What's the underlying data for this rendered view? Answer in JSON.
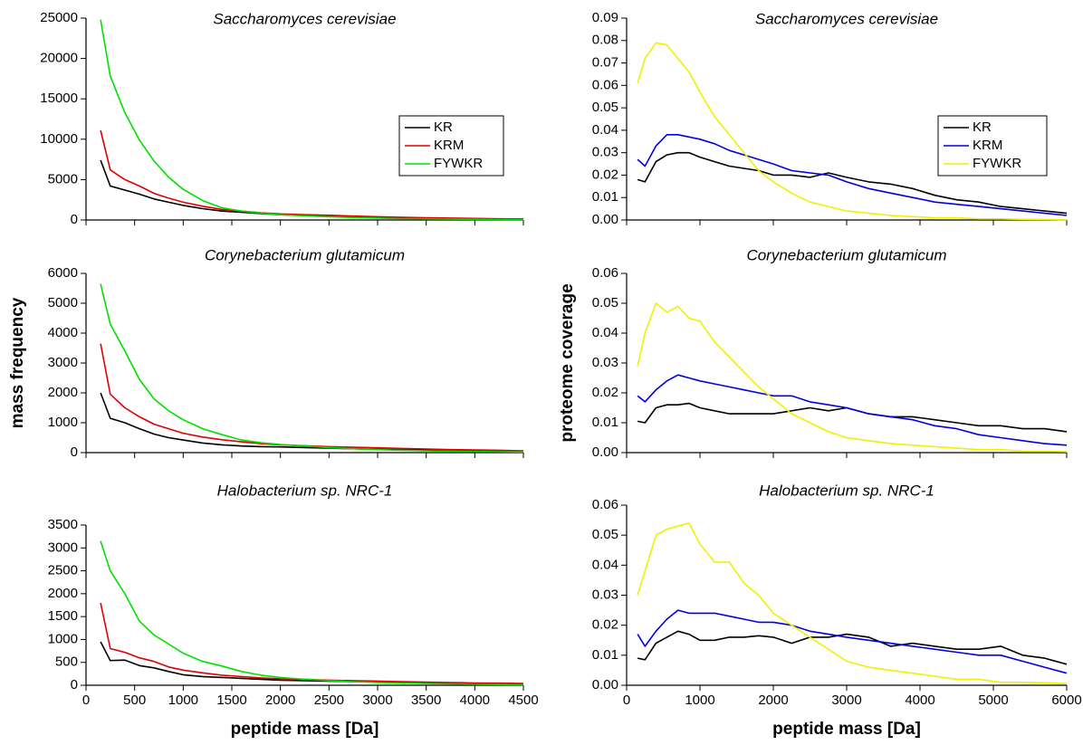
{
  "chart_data": [
    {
      "type": "line",
      "title": "Saccharomyces cerevisiae",
      "legend": "right",
      "x": [
        150,
        250,
        400,
        550,
        700,
        850,
        1000,
        1200,
        1400,
        1600,
        1800,
        2000,
        2250,
        2500,
        2750,
        3000,
        3250,
        3500,
        3750,
        4000,
        4250,
        4500
      ],
      "series": [
        {
          "name": "KR",
          "color": "#000000",
          "values": [
            7400,
            4200,
            3700,
            3200,
            2600,
            2200,
            1800,
            1400,
            1100,
            950,
            800,
            650,
            550,
            450,
            380,
            320,
            260,
            220,
            180,
            150,
            120,
            100
          ]
        },
        {
          "name": "KRM",
          "color": "#e00000",
          "values": [
            11100,
            6200,
            5000,
            4200,
            3300,
            2700,
            2200,
            1700,
            1300,
            1100,
            900,
            750,
            650,
            580,
            480,
            400,
            340,
            280,
            230,
            190,
            150,
            120
          ]
        },
        {
          "name": "FYWKR",
          "color": "#00e000",
          "values": [
            24800,
            17800,
            13300,
            9900,
            7300,
            5300,
            3800,
            2400,
            1500,
            1100,
            850,
            650,
            500,
            400,
            300,
            230,
            170,
            130,
            100,
            80,
            60,
            40
          ]
        }
      ],
      "xlim": [
        0,
        4500
      ],
      "xticks": [
        0,
        500,
        1000,
        1500,
        2000,
        2500,
        3000,
        3500,
        4000,
        4500
      ],
      "show_xtick_labels": false,
      "ylim": [
        0,
        25000
      ],
      "yticks": [
        0,
        5000,
        10000,
        15000,
        20000,
        25000
      ]
    },
    {
      "type": "line",
      "title": "Corynebacterium glutamicum",
      "ylabel": "mass frequency",
      "x": [
        150,
        250,
        400,
        550,
        700,
        850,
        1000,
        1200,
        1400,
        1600,
        1800,
        2000,
        2250,
        2500,
        2750,
        3000,
        3250,
        3500,
        3750,
        4000,
        4250,
        4500
      ],
      "series": [
        {
          "name": "KR",
          "color": "#000000",
          "values": [
            2000,
            1150,
            1000,
            800,
            620,
            500,
            420,
            320,
            260,
            220,
            200,
            190,
            170,
            150,
            130,
            110,
            100,
            90,
            80,
            70,
            60,
            50
          ]
        },
        {
          "name": "KRM",
          "color": "#e00000",
          "values": [
            3650,
            1950,
            1500,
            1200,
            950,
            800,
            650,
            520,
            430,
            360,
            300,
            260,
            230,
            200,
            180,
            160,
            140,
            120,
            100,
            90,
            80,
            60
          ]
        },
        {
          "name": "FYWKR",
          "color": "#00e000",
          "values": [
            5650,
            4300,
            3400,
            2450,
            1800,
            1400,
            1100,
            800,
            600,
            420,
            330,
            270,
            220,
            170,
            130,
            100,
            80,
            60,
            50,
            40,
            30,
            20
          ]
        }
      ],
      "xlim": [
        0,
        4500
      ],
      "xticks": [
        0,
        500,
        1000,
        1500,
        2000,
        2500,
        3000,
        3500,
        4000,
        4500
      ],
      "show_xtick_labels": false,
      "ylim": [
        0,
        6000
      ],
      "yticks": [
        0,
        1000,
        2000,
        3000,
        4000,
        5000,
        6000
      ]
    },
    {
      "type": "line",
      "title": "Halobacterium sp. NRC-1",
      "xlabel": "peptide mass [Da]",
      "x": [
        150,
        250,
        400,
        550,
        700,
        850,
        1000,
        1200,
        1400,
        1600,
        1800,
        2000,
        2250,
        2500,
        2750,
        3000,
        3250,
        3500,
        3750,
        4000,
        4250,
        4500
      ],
      "series": [
        {
          "name": "KR",
          "color": "#000000",
          "values": [
            950,
            540,
            550,
            430,
            380,
            300,
            230,
            190,
            170,
            150,
            130,
            110,
            100,
            90,
            80,
            70,
            60,
            55,
            50,
            40,
            35,
            30
          ]
        },
        {
          "name": "KRM",
          "color": "#e00000",
          "values": [
            1800,
            800,
            720,
            600,
            520,
            400,
            330,
            270,
            220,
            190,
            160,
            140,
            130,
            110,
            100,
            90,
            80,
            70,
            60,
            50,
            45,
            40
          ]
        },
        {
          "name": "FYWKR",
          "color": "#00e000",
          "values": [
            3150,
            2500,
            2000,
            1400,
            1100,
            900,
            700,
            520,
            420,
            300,
            220,
            170,
            130,
            100,
            80,
            60,
            50,
            40,
            30,
            20,
            15,
            10
          ]
        }
      ],
      "xlim": [
        0,
        4500
      ],
      "xticks": [
        0,
        500,
        1000,
        1500,
        2000,
        2500,
        3000,
        3500,
        4000,
        4500
      ],
      "show_xtick_labels": true,
      "ylim": [
        0,
        3500
      ],
      "yticks": [
        0,
        500,
        1000,
        1500,
        2000,
        2500,
        3000,
        3500
      ]
    },
    {
      "type": "line",
      "title": "Saccharomyces cerevisiae",
      "legend": "right",
      "x": [
        150,
        250,
        400,
        550,
        700,
        850,
        1000,
        1200,
        1400,
        1600,
        1800,
        2000,
        2250,
        2500,
        2750,
        3000,
        3300,
        3600,
        3900,
        4200,
        4500,
        4800,
        5100,
        5400,
        5700,
        6000
      ],
      "series": [
        {
          "name": "KR",
          "color": "#000000",
          "values": [
            0.018,
            0.017,
            0.026,
            0.029,
            0.03,
            0.03,
            0.028,
            0.026,
            0.024,
            0.023,
            0.022,
            0.02,
            0.02,
            0.019,
            0.021,
            0.019,
            0.017,
            0.016,
            0.014,
            0.011,
            0.009,
            0.008,
            0.006,
            0.005,
            0.004,
            0.003
          ]
        },
        {
          "name": "KRM",
          "color": "#0000e0",
          "values": [
            0.027,
            0.024,
            0.033,
            0.038,
            0.038,
            0.037,
            0.036,
            0.034,
            0.031,
            0.029,
            0.027,
            0.025,
            0.022,
            0.021,
            0.02,
            0.017,
            0.014,
            0.012,
            0.01,
            0.008,
            0.007,
            0.006,
            0.005,
            0.004,
            0.003,
            0.002
          ]
        },
        {
          "name": "FYWKR",
          "color": "#f0f000",
          "values": [
            0.061,
            0.072,
            0.079,
            0.078,
            0.072,
            0.066,
            0.057,
            0.046,
            0.038,
            0.03,
            0.022,
            0.017,
            0.012,
            0.008,
            0.006,
            0.004,
            0.003,
            0.002,
            0.0015,
            0.001,
            0.001,
            0.0005,
            0.0005,
            0.0003,
            0.0002,
            0.0001
          ]
        }
      ],
      "xlim": [
        0,
        6000
      ],
      "xticks": [
        0,
        1000,
        2000,
        3000,
        4000,
        5000,
        6000
      ],
      "show_xtick_labels": false,
      "ylim": [
        0,
        0.09
      ],
      "yticks": [
        {
          "value": 0,
          "label": "0.00"
        },
        {
          "value": 0.01,
          "label": "0.01"
        },
        {
          "value": 0.02,
          "label": "0.02"
        },
        {
          "value": 0.03,
          "label": "0.03"
        },
        {
          "value": 0.04,
          "label": "0.04"
        },
        {
          "value": 0.05,
          "label": "0.05"
        },
        {
          "value": 0.06,
          "label": "0.06"
        },
        {
          "value": 0.07,
          "label": "0.07"
        },
        {
          "value": 0.08,
          "label": "0.08"
        },
        {
          "value": 0.09,
          "label": "0.09"
        }
      ]
    },
    {
      "type": "line",
      "title": "Corynebacterium glutamicum",
      "ylabel": "proteome coverage",
      "x": [
        150,
        250,
        400,
        550,
        700,
        850,
        1000,
        1200,
        1400,
        1600,
        1800,
        2000,
        2250,
        2500,
        2750,
        3000,
        3300,
        3600,
        3900,
        4200,
        4500,
        4800,
        5100,
        5400,
        5700,
        6000
      ],
      "series": [
        {
          "name": "KR",
          "color": "#000000",
          "values": [
            0.0105,
            0.01,
            0.015,
            0.016,
            0.016,
            0.0165,
            0.015,
            0.014,
            0.013,
            0.013,
            0.013,
            0.013,
            0.014,
            0.015,
            0.014,
            0.015,
            0.013,
            0.012,
            0.012,
            0.011,
            0.01,
            0.009,
            0.009,
            0.008,
            0.008,
            0.007
          ]
        },
        {
          "name": "KRM",
          "color": "#0000e0",
          "values": [
            0.019,
            0.017,
            0.021,
            0.024,
            0.026,
            0.025,
            0.024,
            0.023,
            0.022,
            0.021,
            0.02,
            0.019,
            0.019,
            0.017,
            0.016,
            0.015,
            0.013,
            0.012,
            0.011,
            0.009,
            0.008,
            0.006,
            0.005,
            0.004,
            0.003,
            0.0025
          ]
        },
        {
          "name": "FYWKR",
          "color": "#f0f000",
          "values": [
            0.029,
            0.04,
            0.05,
            0.047,
            0.049,
            0.045,
            0.044,
            0.037,
            0.032,
            0.027,
            0.022,
            0.018,
            0.013,
            0.01,
            0.007,
            0.005,
            0.004,
            0.003,
            0.0025,
            0.002,
            0.0015,
            0.001,
            0.001,
            0.0005,
            0.0005,
            0.0003
          ]
        }
      ],
      "xlim": [
        0,
        6000
      ],
      "xticks": [
        0,
        1000,
        2000,
        3000,
        4000,
        5000,
        6000
      ],
      "show_xtick_labels": false,
      "ylim": [
        0,
        0.06
      ],
      "yticks": [
        {
          "value": 0,
          "label": "0.00"
        },
        {
          "value": 0.01,
          "label": "0.01"
        },
        {
          "value": 0.02,
          "label": "0.02"
        },
        {
          "value": 0.03,
          "label": "0.03"
        },
        {
          "value": 0.04,
          "label": "0.04"
        },
        {
          "value": 0.05,
          "label": "0.05"
        },
        {
          "value": 0.06,
          "label": "0.06"
        }
      ]
    },
    {
      "type": "line",
      "title": "Halobacterium sp. NRC-1",
      "xlabel": "peptide mass [Da]",
      "x": [
        150,
        250,
        400,
        550,
        700,
        850,
        1000,
        1200,
        1400,
        1600,
        1800,
        2000,
        2250,
        2500,
        2750,
        3000,
        3300,
        3600,
        3900,
        4200,
        4500,
        4800,
        5100,
        5400,
        5700,
        6000
      ],
      "series": [
        {
          "name": "KR",
          "color": "#000000",
          "values": [
            0.009,
            0.0085,
            0.014,
            0.016,
            0.018,
            0.017,
            0.015,
            0.015,
            0.016,
            0.016,
            0.0165,
            0.016,
            0.014,
            0.016,
            0.016,
            0.017,
            0.016,
            0.013,
            0.014,
            0.013,
            0.012,
            0.012,
            0.013,
            0.01,
            0.009,
            0.007
          ]
        },
        {
          "name": "KRM",
          "color": "#0000e0",
          "values": [
            0.017,
            0.013,
            0.018,
            0.022,
            0.025,
            0.024,
            0.024,
            0.024,
            0.023,
            0.022,
            0.021,
            0.021,
            0.02,
            0.018,
            0.017,
            0.016,
            0.015,
            0.014,
            0.013,
            0.012,
            0.011,
            0.01,
            0.01,
            0.008,
            0.006,
            0.004
          ]
        },
        {
          "name": "FYWKR",
          "color": "#f0f000",
          "values": [
            0.03,
            0.038,
            0.05,
            0.052,
            0.053,
            0.054,
            0.047,
            0.041,
            0.041,
            0.034,
            0.03,
            0.024,
            0.02,
            0.016,
            0.012,
            0.008,
            0.006,
            0.005,
            0.004,
            0.003,
            0.002,
            0.002,
            0.001,
            0.001,
            0.0008,
            0.0005
          ]
        }
      ],
      "xlim": [
        0,
        6000
      ],
      "xticks": [
        0,
        1000,
        2000,
        3000,
        4000,
        5000,
        6000
      ],
      "show_xtick_labels": true,
      "ylim": [
        0,
        0.06
      ],
      "yticks": [
        {
          "value": 0,
          "label": "0.00"
        },
        {
          "value": 0.01,
          "label": "0.01"
        },
        {
          "value": 0.02,
          "label": "0.02"
        },
        {
          "value": 0.03,
          "label": "0.03"
        },
        {
          "value": 0.04,
          "label": "0.04"
        },
        {
          "value": 0.05,
          "label": "0.05"
        },
        {
          "value": 0.06,
          "label": "0.06"
        }
      ]
    }
  ]
}
